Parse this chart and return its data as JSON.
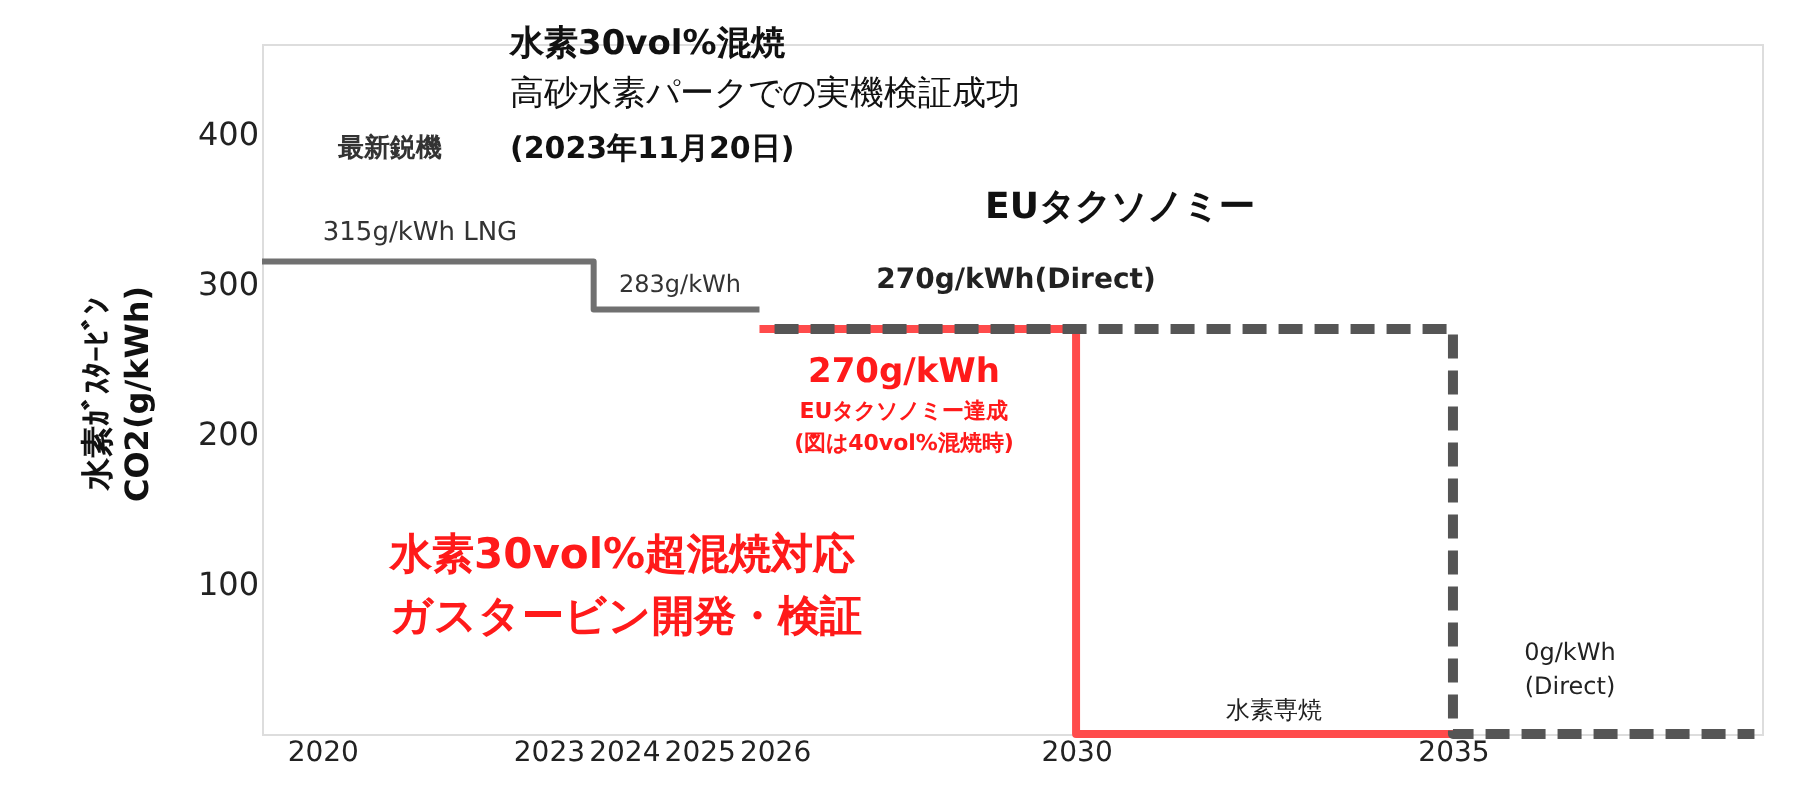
{
  "chart_data": {
    "type": "line",
    "ylabel": "水素ｶﾞｽﾀｰﾋﾞﾝ\nCO2(g/kWh)",
    "xlim": [
      2019.2,
      2039.1
    ],
    "xticks": [
      2020,
      2023,
      2024,
      2025,
      2026,
      2030,
      2035
    ],
    "ylim": [
      0,
      460
    ],
    "yticks": [
      100,
      200,
      300,
      400
    ],
    "grid": false,
    "marker": "none",
    "series": [
      {
        "color": "#707070",
        "x": [
          2019.2,
          2023.6,
          2023.6,
          2025.8
        ],
        "values": [
          315,
          315,
          283,
          283
        ],
        "line_style": "solid"
      },
      {
        "color": "#ff4b4b",
        "x": [
          2025.8,
          2030,
          2030,
          2035
        ],
        "values": [
          270,
          270,
          0,
          0
        ],
        "line_style": "solid"
      },
      {
        "color": "#555555",
        "x": [
          2026,
          2035,
          2035,
          2039
        ],
        "values": [
          270,
          270,
          0,
          0
        ],
        "line_style": "dashed"
      }
    ],
    "annotations": [
      "最新鋭機",
      "315g/kWh  LNG",
      "283g/kWh",
      "270g/kWh(Direct)",
      "270g/kWh",
      "EUタクソノミー達成",
      "(図は40vol%混焼時)",
      "水素専焼",
      "0g/kWh",
      "(Direct)",
      "水素30vol%混焼",
      "高砂水素パークでの実機検証成功",
      "(2023年11月20日)",
      "EUタクソノミー",
      "水素30vol%超混焼対応",
      "ガスタービン開発・検証"
    ]
  }
}
